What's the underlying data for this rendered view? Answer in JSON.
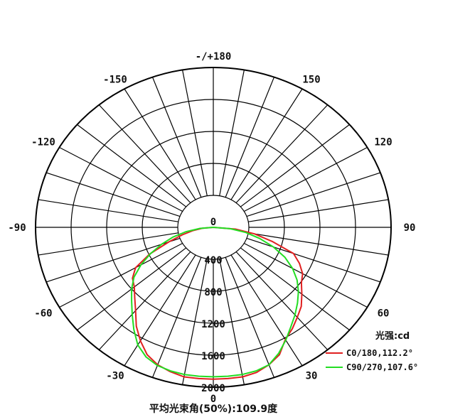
{
  "chart_data": {
    "type": "polar-line",
    "angle_labels": [
      {
        "deg": 0,
        "label": "0"
      },
      {
        "deg": 30,
        "label": "30"
      },
      {
        "deg": 60,
        "label": "60"
      },
      {
        "deg": 90,
        "label": "90"
      },
      {
        "deg": 120,
        "label": "120"
      },
      {
        "deg": 150,
        "label": "150"
      },
      {
        "deg": 180,
        "label": "-/+180"
      },
      {
        "deg": -150,
        "label": "-150"
      },
      {
        "deg": -120,
        "label": "-120"
      },
      {
        "deg": -90,
        "label": "-90"
      },
      {
        "deg": -60,
        "label": "-60"
      },
      {
        "deg": -30,
        "label": "-30"
      }
    ],
    "radial_ticks": [
      {
        "value": 0,
        "label": "0"
      },
      {
        "value": 400,
        "label": "400"
      },
      {
        "value": 800,
        "label": "800"
      },
      {
        "value": 1200,
        "label": "1200"
      },
      {
        "value": 1600,
        "label": "1600"
      },
      {
        "value": 2000,
        "label": "2000"
      }
    ],
    "rmax": 2000,
    "legend_title": "光强:cd",
    "series": [
      {
        "name": "C0/180,112.2°",
        "color": "#e02020",
        "angles": [
          -90,
          -85,
          -80,
          -75,
          -70,
          -65,
          -60,
          -55,
          -50,
          -45,
          -40,
          -35,
          -30,
          -25,
          -20,
          -15,
          -10,
          -5,
          0,
          5,
          10,
          15,
          20,
          25,
          30,
          35,
          40,
          45,
          50,
          55,
          60,
          65,
          70,
          75,
          80,
          85,
          90
        ],
        "values": [
          0,
          120,
          230,
          360,
          530,
          790,
          1010,
          1110,
          1160,
          1250,
          1360,
          1510,
          1640,
          1760,
          1830,
          1870,
          1900,
          1900,
          1900,
          1900,
          1900,
          1880,
          1830,
          1760,
          1620,
          1550,
          1470,
          1400,
          1300,
          1210,
          1160,
          1070,
          960,
          690,
          470,
          250,
          0
        ]
      },
      {
        "name": "C90/270,107.6°",
        "color": "#22dd22",
        "angles": [
          -90,
          -85,
          -80,
          -75,
          -70,
          -65,
          -60,
          -55,
          -50,
          -45,
          -40,
          -35,
          -30,
          -25,
          -20,
          -15,
          -10,
          -5,
          0,
          5,
          10,
          15,
          20,
          25,
          30,
          35,
          40,
          45,
          50,
          55,
          60,
          65,
          70,
          75,
          80,
          85,
          90
        ],
        "values": [
          0,
          150,
          310,
          470,
          620,
          780,
          940,
          1090,
          1200,
          1300,
          1420,
          1560,
          1700,
          1790,
          1840,
          1860,
          1870,
          1870,
          1870,
          1870,
          1870,
          1860,
          1830,
          1740,
          1630,
          1520,
          1430,
          1340,
          1250,
          1150,
          1030,
          890,
          720,
          540,
          370,
          190,
          0
        ]
      }
    ],
    "caption": "平均光束角(50%):109.9度"
  }
}
